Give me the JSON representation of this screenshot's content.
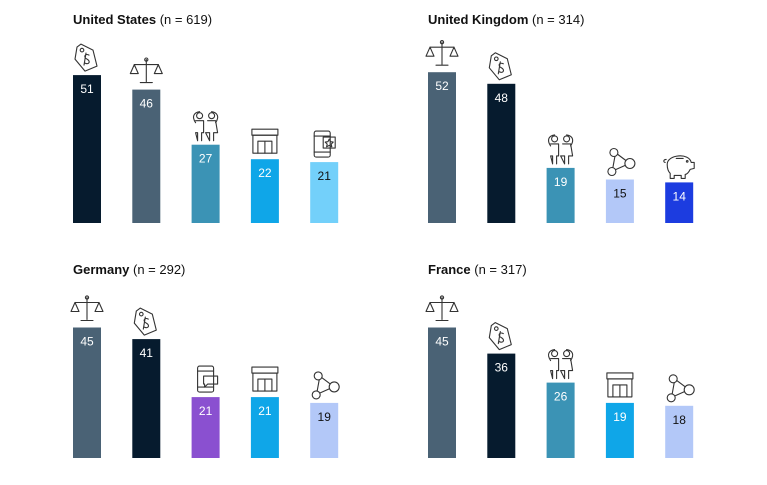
{
  "chart_data": [
    {
      "type": "bar",
      "title": "United States",
      "sample": "(n = 619)",
      "values": [
        51,
        46,
        27,
        22,
        21
      ],
      "icons": [
        "price-tag-icon",
        "scales-icon",
        "family-icon",
        "store-icon",
        "mobile-app-icon"
      ],
      "colors": [
        "#061B2E",
        "#4A6275",
        "#3B93B5",
        "#0FA6E8",
        "#73D0FA"
      ]
    },
    {
      "type": "bar",
      "title": "United Kingdom",
      "sample": "(n = 314)",
      "values": [
        52,
        48,
        19,
        15,
        14
      ],
      "icons": [
        "scales-icon",
        "price-tag-icon",
        "family-icon",
        "network-icon",
        "piggy-bank-icon"
      ],
      "colors": [
        "#4A6275",
        "#061B2E",
        "#3B93B5",
        "#B3C8F8",
        "#1C3CE0"
      ]
    },
    {
      "type": "bar",
      "title": "Germany",
      "sample": "(n = 292)",
      "values": [
        45,
        41,
        21,
        21,
        19
      ],
      "icons": [
        "scales-icon",
        "price-tag-icon",
        "mobile-chat-icon",
        "store-icon",
        "network-icon"
      ],
      "colors": [
        "#4A6275",
        "#061B2E",
        "#8A50D0",
        "#0FA6E8",
        "#B3C8F8"
      ]
    },
    {
      "type": "bar",
      "title": "France",
      "sample": "(n = 317)",
      "values": [
        45,
        36,
        26,
        19,
        18
      ],
      "icons": [
        "scales-icon",
        "price-tag-icon",
        "family-icon",
        "store-icon",
        "network-icon"
      ],
      "colors": [
        "#4A6275",
        "#061B2E",
        "#3B93B5",
        "#0FA6E8",
        "#B3C8F8"
      ]
    }
  ]
}
